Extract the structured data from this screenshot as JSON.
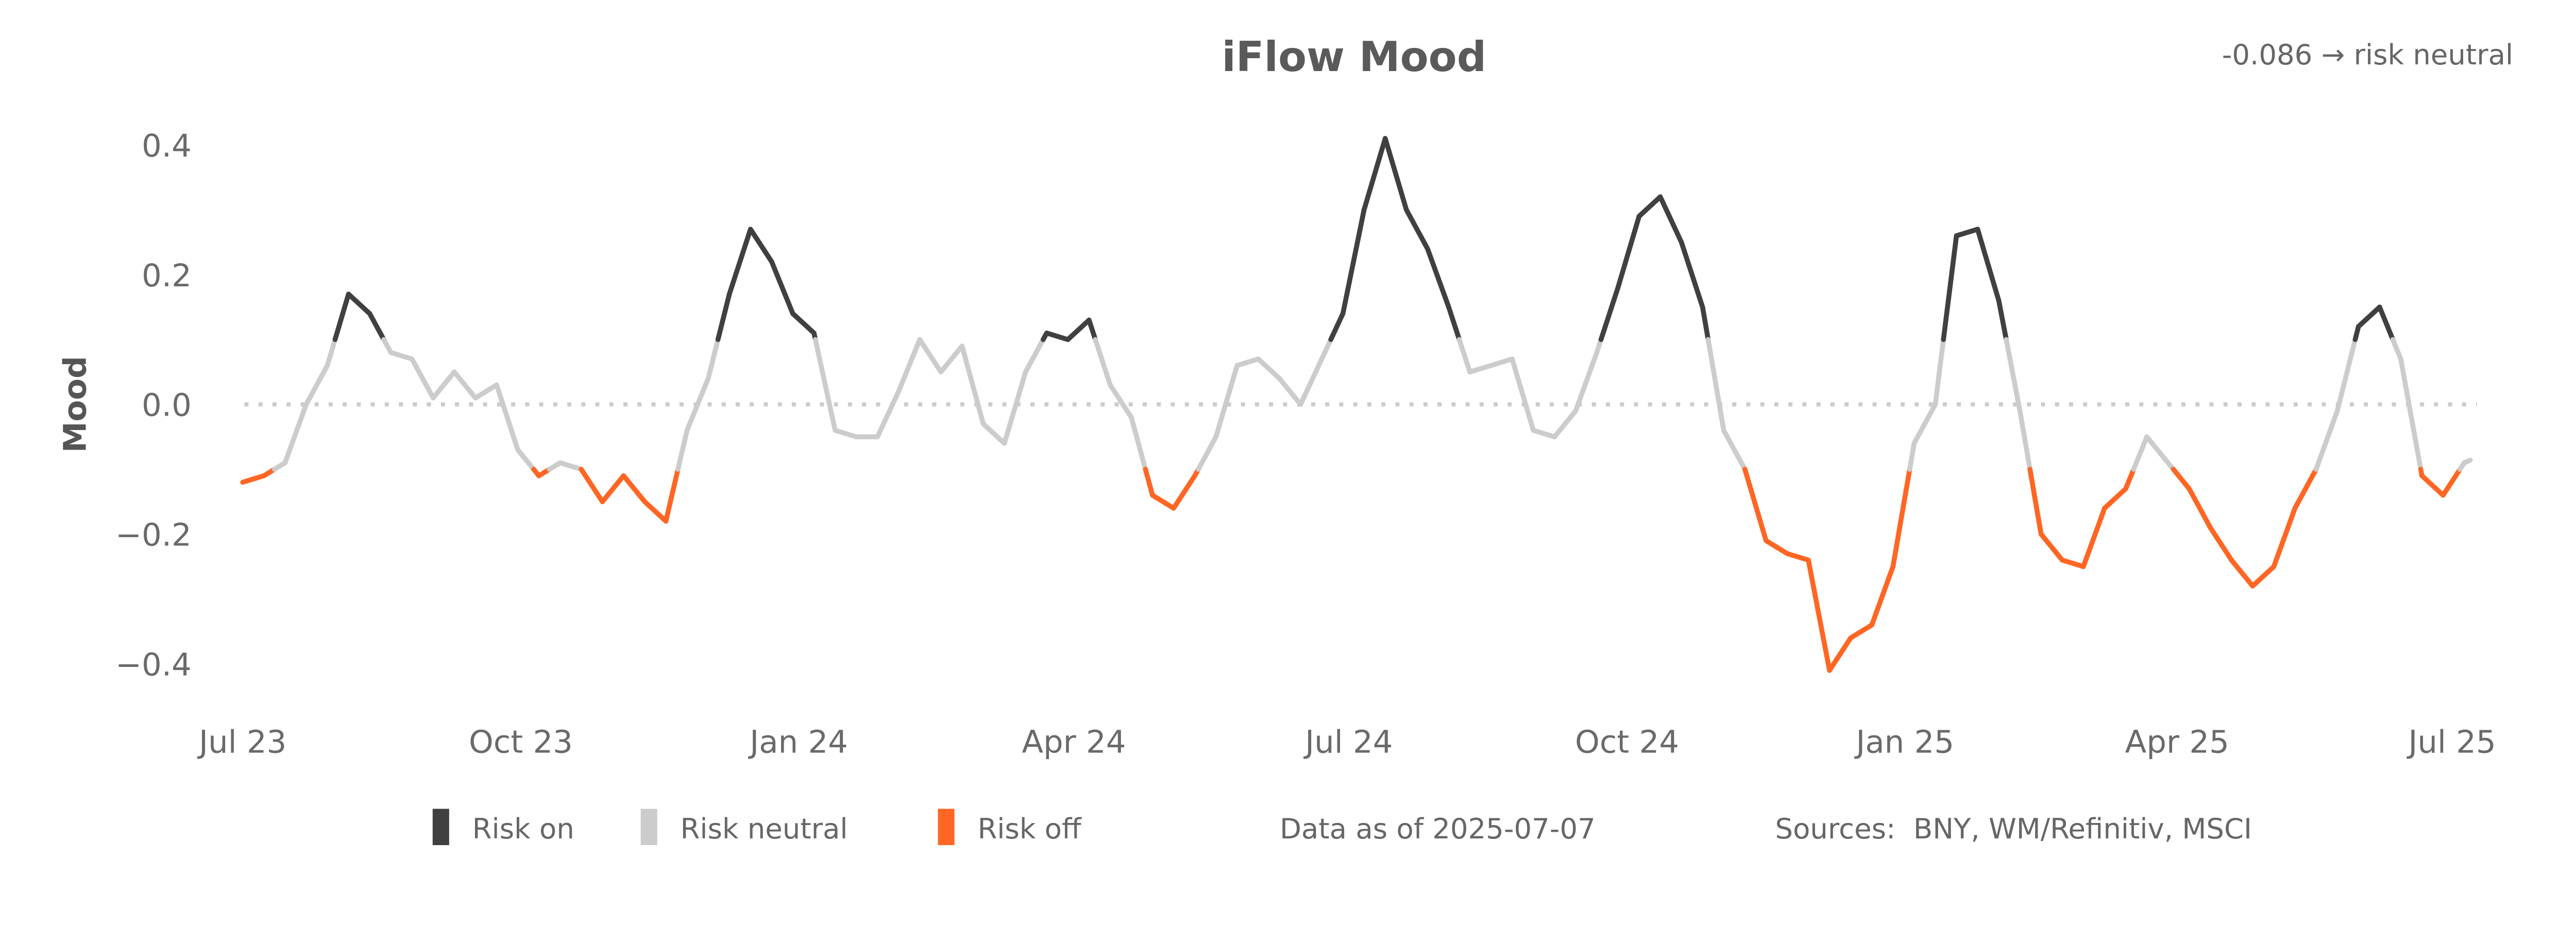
{
  "chart_data": {
    "type": "line",
    "title": "iFlow Mood",
    "latest_reading": "-0.086 → risk neutral",
    "ylabel": "Mood",
    "xlabel": "",
    "ylim": [
      -0.45,
      0.45
    ],
    "yticks": [
      0.4,
      0.2,
      0.0,
      -0.2,
      -0.4
    ],
    "ytick_labels": [
      "0.4",
      "0.2",
      "0.0",
      "−0.2",
      "−0.4"
    ],
    "xticks": [
      "2023-07-01",
      "2023-10-01",
      "2024-01-01",
      "2024-04-01",
      "2024-07-01",
      "2024-10-01",
      "2025-01-01",
      "2025-04-01",
      "2025-07-01"
    ],
    "xtick_labels": [
      "Jul 23",
      "Oct 23",
      "Jan 24",
      "Apr 24",
      "Jul 24",
      "Oct 24",
      "Jan 25",
      "Apr 25",
      "Jul 25"
    ],
    "xlim": [
      "2023-07-01",
      "2025-07-07"
    ],
    "zero_line": "dotted",
    "grid": false,
    "thresholds": {
      "risk_on_above": 0.1,
      "risk_off_below": -0.1
    },
    "colors": {
      "risk_on": "#404040",
      "risk_neutral": "#cccccc",
      "risk_off": "#ff6624",
      "zero_line": "#cccccc"
    },
    "legend": {
      "placement": "bottom",
      "items": [
        {
          "label": "Risk on",
          "color": "#404040"
        },
        {
          "label": "Risk neutral",
          "color": "#cccccc"
        },
        {
          "label": "Risk off",
          "color": "#ff6624"
        }
      ]
    },
    "data_as_of": "Data as of 2025-07-07",
    "sources": "Sources:  BNY, WM/Refinitiv, MSCI",
    "x": [
      "2023-07-01",
      "2023-07-08",
      "2023-07-15",
      "2023-07-22",
      "2023-07-29",
      "2023-08-05",
      "2023-08-12",
      "2023-08-19",
      "2023-08-26",
      "2023-09-02",
      "2023-09-09",
      "2023-09-16",
      "2023-09-23",
      "2023-09-30",
      "2023-10-07",
      "2023-10-14",
      "2023-10-21",
      "2023-10-28",
      "2023-11-04",
      "2023-11-11",
      "2023-11-18",
      "2023-11-25",
      "2023-12-02",
      "2023-12-09",
      "2023-12-16",
      "2023-12-23",
      "2023-12-30",
      "2024-01-06",
      "2024-01-13",
      "2024-01-20",
      "2024-01-27",
      "2024-02-03",
      "2024-02-10",
      "2024-02-17",
      "2024-02-24",
      "2024-03-02",
      "2024-03-09",
      "2024-03-16",
      "2024-03-23",
      "2024-03-30",
      "2024-04-06",
      "2024-04-13",
      "2024-04-20",
      "2024-04-27",
      "2024-05-04",
      "2024-05-11",
      "2024-05-18",
      "2024-05-25",
      "2024-06-01",
      "2024-06-08",
      "2024-06-15",
      "2024-06-22",
      "2024-06-29",
      "2024-07-06",
      "2024-07-13",
      "2024-07-20",
      "2024-07-27",
      "2024-08-03",
      "2024-08-10",
      "2024-08-17",
      "2024-08-24",
      "2024-08-31",
      "2024-09-07",
      "2024-09-14",
      "2024-09-21",
      "2024-09-28",
      "2024-10-05",
      "2024-10-12",
      "2024-10-19",
      "2024-10-26",
      "2024-11-02",
      "2024-11-09",
      "2024-11-16",
      "2024-11-23",
      "2024-11-30",
      "2024-12-07",
      "2024-12-14",
      "2024-12-21",
      "2024-12-28",
      "2025-01-04",
      "2025-01-11",
      "2025-01-18",
      "2025-01-25",
      "2025-02-01",
      "2025-02-08",
      "2025-02-15",
      "2025-02-22",
      "2025-03-01",
      "2025-03-08",
      "2025-03-15",
      "2025-03-22",
      "2025-03-29",
      "2025-04-05",
      "2025-04-12",
      "2025-04-19",
      "2025-04-26",
      "2025-05-03",
      "2025-05-10",
      "2025-05-17",
      "2025-05-24",
      "2025-05-31",
      "2025-06-07",
      "2025-06-14",
      "2025-06-21",
      "2025-06-28",
      "2025-07-05",
      "2025-07-07"
    ],
    "values": [
      -0.12,
      -0.11,
      -0.09,
      0.0,
      0.06,
      0.17,
      0.14,
      0.08,
      0.07,
      0.01,
      0.05,
      0.01,
      0.03,
      -0.07,
      -0.11,
      -0.09,
      -0.1,
      -0.15,
      -0.11,
      -0.15,
      -0.18,
      -0.04,
      0.04,
      0.17,
      0.27,
      0.22,
      0.14,
      0.11,
      -0.04,
      -0.05,
      -0.05,
      0.02,
      0.1,
      0.05,
      0.09,
      -0.03,
      -0.06,
      0.05,
      0.11,
      0.1,
      0.13,
      0.03,
      -0.02,
      -0.14,
      -0.16,
      -0.11,
      -0.05,
      0.06,
      0.07,
      0.04,
      0.0,
      0.07,
      0.14,
      0.3,
      0.41,
      0.3,
      0.24,
      0.15,
      0.05,
      0.06,
      0.07,
      -0.04,
      -0.05,
      -0.01,
      0.08,
      0.18,
      0.29,
      0.32,
      0.25,
      0.15,
      -0.04,
      -0.1,
      -0.21,
      -0.23,
      -0.24,
      -0.41,
      -0.36,
      -0.34,
      -0.25,
      -0.06,
      0.0,
      0.26,
      0.27,
      0.16,
      -0.01,
      -0.2,
      -0.24,
      -0.25,
      -0.16,
      -0.13,
      -0.05,
      -0.09,
      -0.13,
      -0.19,
      -0.24,
      -0.28,
      -0.25,
      -0.16,
      -0.1,
      -0.01,
      0.12,
      0.15,
      0.07,
      -0.11,
      -0.14,
      -0.09,
      -0.086
    ]
  }
}
